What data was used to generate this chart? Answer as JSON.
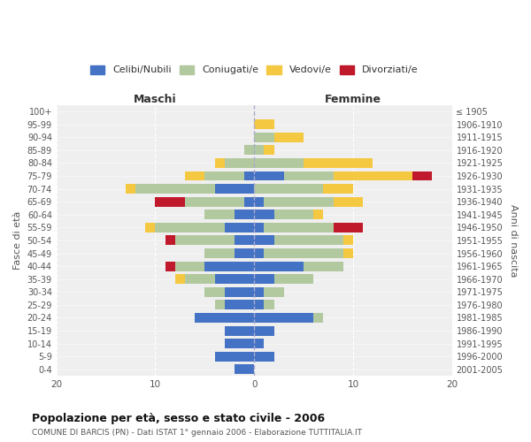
{
  "age_groups": [
    "100+",
    "95-99",
    "90-94",
    "85-89",
    "80-84",
    "75-79",
    "70-74",
    "65-69",
    "60-64",
    "55-59",
    "50-54",
    "45-49",
    "40-44",
    "35-39",
    "30-34",
    "25-29",
    "20-24",
    "15-19",
    "10-14",
    "5-9",
    "0-4"
  ],
  "birth_years": [
    "≤ 1905",
    "1906-1910",
    "1911-1915",
    "1916-1920",
    "1921-1925",
    "1926-1930",
    "1931-1935",
    "1936-1940",
    "1941-1945",
    "1946-1950",
    "1951-1955",
    "1956-1960",
    "1961-1965",
    "1966-1970",
    "1971-1975",
    "1976-1980",
    "1981-1985",
    "1986-1990",
    "1991-1995",
    "1996-2000",
    "2001-2005"
  ],
  "male_celibi": [
    0,
    0,
    0,
    0,
    0,
    1,
    4,
    1,
    2,
    3,
    2,
    2,
    5,
    4,
    3,
    3,
    6,
    3,
    3,
    4,
    2
  ],
  "male_coniugati": [
    0,
    0,
    0,
    1,
    3,
    4,
    8,
    6,
    3,
    7,
    6,
    3,
    3,
    3,
    2,
    1,
    0,
    0,
    0,
    0,
    0
  ],
  "male_vedovi": [
    0,
    0,
    0,
    0,
    1,
    2,
    1,
    0,
    0,
    1,
    0,
    0,
    0,
    1,
    0,
    0,
    0,
    0,
    0,
    0,
    0
  ],
  "male_divorziati": [
    0,
    0,
    0,
    0,
    0,
    0,
    0,
    3,
    0,
    0,
    1,
    0,
    1,
    0,
    0,
    0,
    0,
    0,
    0,
    0,
    0
  ],
  "female_celibi": [
    0,
    0,
    0,
    0,
    0,
    3,
    0,
    1,
    2,
    1,
    2,
    1,
    5,
    2,
    1,
    1,
    6,
    2,
    1,
    2,
    0
  ],
  "female_coniugati": [
    0,
    0,
    2,
    1,
    5,
    5,
    7,
    7,
    4,
    7,
    7,
    8,
    4,
    4,
    2,
    1,
    1,
    0,
    0,
    0,
    0
  ],
  "female_vedovi": [
    0,
    2,
    3,
    1,
    7,
    8,
    3,
    3,
    1,
    0,
    1,
    1,
    0,
    0,
    0,
    0,
    0,
    0,
    0,
    0,
    0
  ],
  "female_divorziati": [
    0,
    0,
    0,
    0,
    0,
    2,
    0,
    0,
    0,
    3,
    0,
    0,
    0,
    0,
    0,
    0,
    0,
    0,
    0,
    0,
    0
  ],
  "color_celibi": "#4472c4",
  "color_coniugati": "#b2c9a0",
  "color_vedovi": "#f5c842",
  "color_divorziati": "#c0192c",
  "title": "Popolazione per età, sesso e stato civile - 2006",
  "subtitle": "COMUNE DI BARCIS (PN) - Dati ISTAT 1° gennaio 2006 - Elaborazione TUTTITALIA.IT",
  "ylabel_left": "Fasce di età",
  "ylabel_right": "Anni di nascita",
  "xlabel_male": "Maschi",
  "xlabel_female": "Femmine",
  "xlim": 20,
  "background_color": "#ffffff",
  "plot_bg_color": "#efefef",
  "grid_color": "#ffffff"
}
